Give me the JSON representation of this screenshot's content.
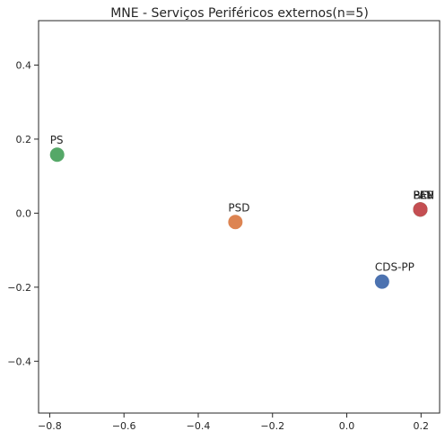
{
  "chart_data": {
    "type": "scatter",
    "title": "MNE - Serviços Periféricos externos(n=5)",
    "xlabel": "",
    "ylabel": "",
    "xlim": [
      -0.83,
      0.25
    ],
    "ylim": [
      -0.54,
      0.52
    ],
    "xticks": [
      -0.8,
      -0.6,
      -0.4,
      -0.2,
      0.0,
      0.2
    ],
    "xtick_labels": [
      "−0.8",
      "−0.6",
      "−0.4",
      "−0.2",
      "0.0",
      "0.2"
    ],
    "yticks": [
      -0.4,
      -0.2,
      0.0,
      0.2,
      0.4
    ],
    "ytick_labels": [
      "−0.4",
      "−0.2",
      "0.0",
      "0.2",
      "0.4"
    ],
    "grid": false,
    "points": [
      {
        "label": "PS",
        "x": -0.78,
        "y": 0.158,
        "color": "#55a868"
      },
      {
        "label": "PSD",
        "x": -0.3,
        "y": -0.024,
        "color": "#dd8452"
      },
      {
        "label": "CDS-PP",
        "x": 0.095,
        "y": -0.185,
        "color": "#4c72b0"
      },
      {
        "label": "BE",
        "x": 0.198,
        "y": 0.01,
        "color": "#4c72b0"
      },
      {
        "label": "PCP",
        "x": 0.198,
        "y": 0.01,
        "color": "#dd8452"
      },
      {
        "label": "PEV",
        "x": 0.198,
        "y": 0.01,
        "color": "#55a868"
      },
      {
        "label": "PAN",
        "x": 0.198,
        "y": 0.01,
        "color": "#c44e52"
      }
    ]
  }
}
